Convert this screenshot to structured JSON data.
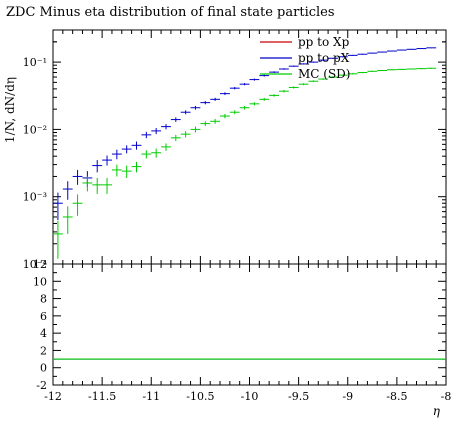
{
  "chart_data": {
    "type": "scatter",
    "title": "ZDC Minus eta distribution of final state particles",
    "xlabel": "η",
    "ylabel": "1/N, dN/dη",
    "xlim": [
      -12,
      -8
    ],
    "ylim": [
      0.0001,
      0.3
    ],
    "yscale": "log",
    "legend_placement": "top-right",
    "x_ticks": [
      -12,
      -11.5,
      -11,
      -10.5,
      -10,
      -9.5,
      -9,
      -8.5,
      -8
    ],
    "y_ticks": [
      {
        "value": 0.0001,
        "label": "10⁻⁴"
      },
      {
        "value": 0.001,
        "label": "10⁻³"
      },
      {
        "value": 0.01,
        "label": "10⁻²"
      },
      {
        "value": 0.1,
        "label": "10⁻¹"
      }
    ],
    "series": [
      {
        "name": "pp to Xp",
        "color": "#cc0000",
        "x": [],
        "y": []
      },
      {
        "name": "pp to pX",
        "color": "#0000cc",
        "x": [
          -11.95,
          -11.85,
          -11.75,
          -11.65,
          -11.55,
          -11.45,
          -11.35,
          -11.25,
          -11.15,
          -11.05,
          -10.95,
          -10.85,
          -10.75,
          -10.65,
          -10.55,
          -10.45,
          -10.35,
          -10.25,
          -10.15,
          -10.05,
          -9.95,
          -9.85,
          -9.75,
          -9.65,
          -9.55,
          -9.45,
          -9.35,
          -9.25,
          -9.15,
          -9.05,
          -8.95,
          -8.85,
          -8.75,
          -8.65,
          -8.55,
          -8.45,
          -8.35,
          -8.25,
          -8.15
        ],
        "y": [
          0.0008,
          0.0013,
          0.002,
          0.0019,
          0.0029,
          0.0035,
          0.0043,
          0.0051,
          0.0058,
          0.0083,
          0.0095,
          0.011,
          0.014,
          0.018,
          0.021,
          0.025,
          0.028,
          0.034,
          0.041,
          0.047,
          0.055,
          0.063,
          0.071,
          0.079,
          0.087,
          0.094,
          0.1,
          0.107,
          0.114,
          0.12,
          0.126,
          0.131,
          0.136,
          0.141,
          0.146,
          0.151,
          0.155,
          0.159,
          0.163
        ],
        "yerr": [
          0.00035,
          0.0004,
          0.0005,
          0.0005,
          0.0006,
          0.0006,
          0.0007,
          0.0007,
          0.0008,
          0.0009,
          0.001,
          0.001,
          0.0011,
          0.0012,
          0.0013,
          0.0014,
          0.0015,
          0.0016,
          0.0017,
          0.0018,
          0.002,
          0.002,
          0.002,
          0.002,
          0.002,
          0.002,
          0.002,
          0.002,
          0.002,
          0.002,
          0.002,
          0.002,
          0.002,
          0.002,
          0.002,
          0.002,
          0.002,
          0.002,
          0.002
        ]
      },
      {
        "name": "MC (SD)",
        "color": "#00cc00",
        "x": [
          -11.95,
          -11.85,
          -11.75,
          -11.65,
          -11.55,
          -11.45,
          -11.35,
          -11.25,
          -11.15,
          -11.05,
          -10.95,
          -10.85,
          -10.75,
          -10.65,
          -10.55,
          -10.45,
          -10.35,
          -10.25,
          -10.15,
          -10.05,
          -9.95,
          -9.85,
          -9.75,
          -9.65,
          -9.55,
          -9.45,
          -9.35,
          -9.25,
          -9.15,
          -9.05,
          -8.95,
          -8.85,
          -8.75,
          -8.65,
          -8.55,
          -8.45,
          -8.35,
          -8.25,
          -8.15
        ],
        "y": [
          0.00028,
          0.0005,
          0.0008,
          0.0016,
          0.0015,
          0.0015,
          0.0025,
          0.0024,
          0.0028,
          0.0043,
          0.0045,
          0.0055,
          0.0075,
          0.0085,
          0.01,
          0.0122,
          0.0132,
          0.0158,
          0.018,
          0.021,
          0.024,
          0.028,
          0.032,
          0.037,
          0.042,
          0.047,
          0.052,
          0.056,
          0.06,
          0.064,
          0.067,
          0.07,
          0.073,
          0.075,
          0.077,
          0.078,
          0.079,
          0.08,
          0.081
        ],
        "yerr": [
          0.00016,
          0.00022,
          0.00028,
          0.0004,
          0.0004,
          0.0004,
          0.0005,
          0.0005,
          0.0005,
          0.0006,
          0.0007,
          0.0007,
          0.0008,
          0.0009,
          0.001,
          0.001,
          0.0011,
          0.0012,
          0.0012,
          0.0013,
          0.0013,
          0.0014,
          0.0014,
          0.0015,
          0.0015,
          0.0015,
          0.0015,
          0.0015,
          0.0015,
          0.0015,
          0.0015,
          0.0015,
          0.0015,
          0.0015,
          0.0015,
          0.0015,
          0.0015,
          0.0015,
          0.0015
        ]
      }
    ],
    "ratio_panel": {
      "ylim": [
        -2,
        12
      ],
      "y_ticks": [
        -2,
        0,
        2,
        4,
        6,
        8,
        10,
        12
      ],
      "series": [
        {
          "name": "pp to pX",
          "color": "#0000cc",
          "value": 1.0
        },
        {
          "name": "MC (SD)",
          "color": "#00cc00",
          "value": 1.0
        }
      ]
    }
  }
}
